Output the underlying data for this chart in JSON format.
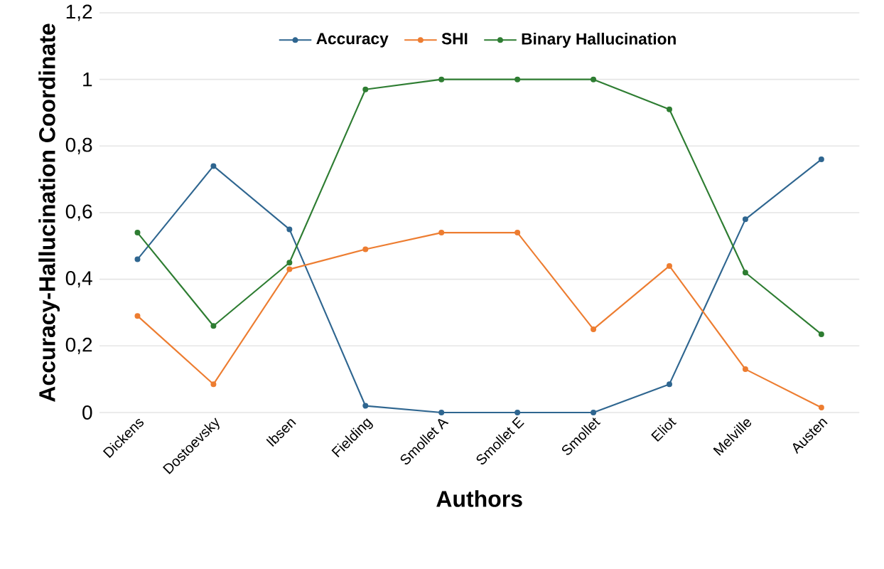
{
  "chart_data": {
    "type": "line",
    "xlabel": "Authors",
    "ylabel": "Accuracy-Hallucination  Coordinate",
    "categories": [
      "Dickens",
      "Dostoevsky",
      "Ibsen",
      "Fielding",
      "Smollet A",
      "Smollet E",
      "Smollet",
      "Eliot",
      "Melville",
      "Austen"
    ],
    "series": [
      {
        "name": "Accuracy",
        "color": "#2f6690",
        "values": [
          0.46,
          0.74,
          0.55,
          0.02,
          0,
          0,
          0,
          0.085,
          0.58,
          0.76
        ]
      },
      {
        "name": "SHI",
        "color": "#ed7d31",
        "values": [
          0.29,
          0.085,
          0.43,
          0.49,
          0.54,
          0.54,
          0.25,
          0.44,
          0.13,
          0.015
        ]
      },
      {
        "name": "Binary Hallucination",
        "color": "#2e7d32",
        "values": [
          0.54,
          0.26,
          0.45,
          0.97,
          1,
          1,
          1,
          0.91,
          0.42,
          0.235
        ]
      }
    ],
    "ylim": [
      0,
      1.2
    ],
    "yticks": [
      0,
      {
        "value": 0.2,
        "label": "0,2"
      },
      {
        "value": 0.4,
        "label": "0,4"
      },
      {
        "value": 0.6,
        "label": "0,6"
      },
      {
        "value": 0.8,
        "label": "0,8"
      },
      1,
      {
        "value": 1.2,
        "label": "1,2"
      }
    ],
    "grid": "y",
    "legend": "top",
    "marker": "circle",
    "line_style": "solid"
  }
}
